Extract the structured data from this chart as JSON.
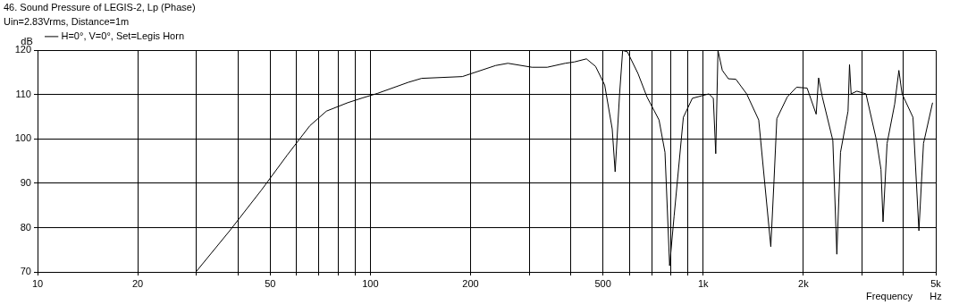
{
  "chart_data": {
    "type": "line",
    "title": "46. Sound Pressure of LEGIS-2, Lp (Phase)",
    "subtitle": "Uin=2.83Vrms, Distance=1m",
    "xlabel": "Frequency",
    "ylabel": "dB",
    "annotations": [
      "Hz"
    ],
    "log": "x",
    "grid": true,
    "legend": "top left",
    "marker": "none",
    "line_style": "solid",
    "xlim": [
      10,
      5000
    ],
    "ylim": [
      70,
      120
    ],
    "xticks": [
      10,
      20,
      {
        "value": 30,
        "label": null
      },
      {
        "value": 40,
        "label": null
      },
      50,
      {
        "value": 60,
        "label": null
      },
      {
        "value": 70,
        "label": null
      },
      {
        "value": 80,
        "label": null
      },
      {
        "value": 90,
        "label": null
      },
      100,
      200,
      {
        "value": 300,
        "label": null
      },
      {
        "value": 400,
        "label": null
      },
      500,
      {
        "value": 600,
        "label": null
      },
      {
        "value": 700,
        "label": null
      },
      {
        "value": 800,
        "label": null
      },
      {
        "value": 900,
        "label": null
      },
      {
        "value": 1000,
        "label": "1k"
      },
      {
        "value": 2000,
        "label": "2k"
      },
      {
        "value": 3000,
        "label": null
      },
      {
        "value": 4000,
        "label": null
      },
      {
        "value": 5000,
        "label": "5k"
      }
    ],
    "yticks": [
      70,
      80,
      90,
      100,
      110,
      120
    ],
    "series": [
      {
        "name": "H=0°, V=0°, Set=Legis Horn",
        "color": "#000000",
        "x": [
          30,
          37.8,
          47.1,
          56.3,
          65.8,
          73.8,
          85.5,
          94.9,
          105,
          130,
          142.6,
          189,
          238,
          259,
          306,
          340,
          385,
          410,
          446,
          475,
          506,
          533,
          544,
          561,
          573,
          592,
          637,
          678,
          737,
          768,
          793,
          818,
          872,
          928,
          1041,
          1073,
          1091,
          1108,
          1142,
          1191,
          1254,
          1351,
          1469,
          1597,
          1631,
          1665,
          1790,
          1908,
          2053,
          2186,
          2223,
          2281,
          2453,
          2522,
          2587,
          2725,
          2753,
          2784,
          2897,
          3085,
          3318,
          3423,
          3472,
          3570,
          3763,
          3874,
          3960,
          4271,
          4450,
          4593,
          4891
        ],
        "values": [
          70.1,
          79.3,
          88.5,
          96.4,
          103.0,
          106.3,
          108.2,
          109.3,
          110.3,
          112.8,
          113.7,
          114.1,
          116.6,
          117.1,
          116.2,
          116.2,
          117.1,
          117.4,
          118.1,
          116.4,
          112.2,
          102.3,
          92.6,
          110.2,
          120,
          119.7,
          114.8,
          109.5,
          104.3,
          97.0,
          71.4,
          82.6,
          104.9,
          109.2,
          110.2,
          109.2,
          96.7,
          120,
          115.5,
          113.6,
          113.5,
          110.2,
          104.3,
          75.7,
          89.8,
          104.6,
          109.5,
          111.7,
          111.5,
          105.6,
          113.8,
          109.5,
          99.7,
          74.0,
          97.0,
          106.3,
          116.8,
          110.2,
          110.8,
          110.2,
          99.7,
          93.1,
          81.3,
          99.0,
          107.9,
          115.5,
          110.2,
          104.9,
          79.3,
          99.0,
          108.2
        ]
      }
    ]
  }
}
